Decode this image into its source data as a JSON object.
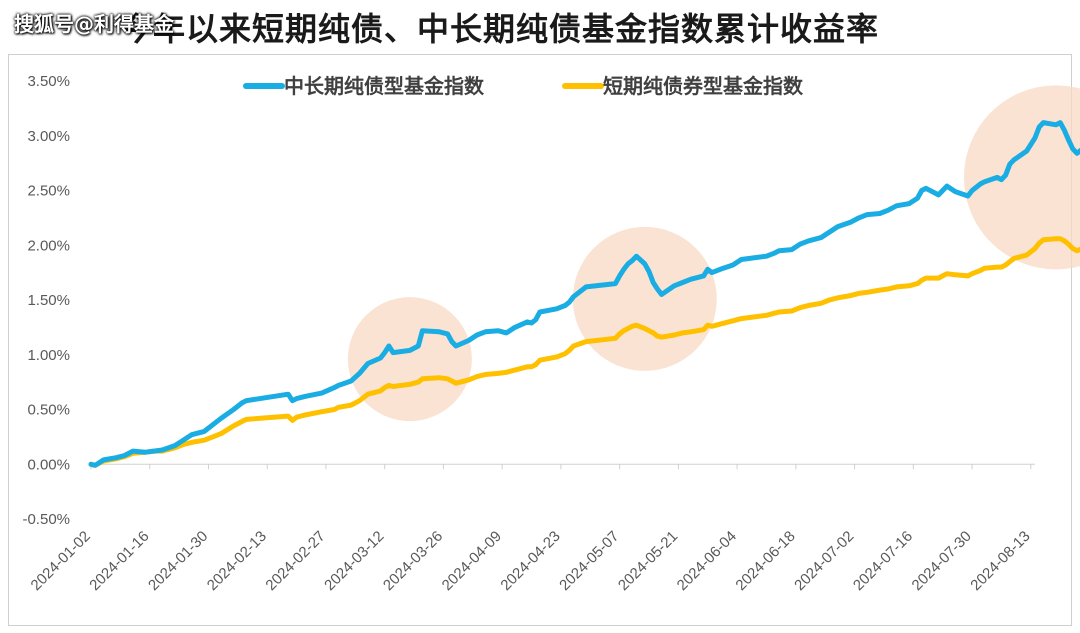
{
  "title": "今年以来短期纯债、中长期纯债基金指数累计收益率",
  "watermark": "搜狐号@利得基金",
  "chart_data": {
    "type": "line",
    "title": "今年以来短期纯债、中长期纯债基金指数累计收益率",
    "xlabel": "",
    "ylabel": "",
    "ylim": [
      -0.005,
      0.035
    ],
    "yticks": [
      "3.50%",
      "3.00%",
      "2.50%",
      "2.00%",
      "1.50%",
      "1.00%",
      "0.50%",
      "0.00%",
      "-0.50%"
    ],
    "ytick_values": [
      0.035,
      0.03,
      0.025,
      0.02,
      0.015,
      0.01,
      0.005,
      0.0,
      -0.005
    ],
    "xrange": [
      "2024-01-02",
      "2024-08-14"
    ],
    "xticks": [
      "2024-01-02",
      "2024-01-16",
      "2024-01-30",
      "2024-02-13",
      "2024-02-27",
      "2024-03-12",
      "2024-03-26",
      "2024-04-09",
      "2024-04-23",
      "2024-05-07",
      "2024-05-21",
      "2024-06-04",
      "2024-06-18",
      "2024-07-02",
      "2024-07-16",
      "2024-07-30",
      "2024-08-13"
    ],
    "legend_position": "top-center",
    "grid": false,
    "series": [
      {
        "name": "中长期纯债型基金指数",
        "color": "#1AADE4",
        "points": [
          [
            "2024-01-02",
            0.0
          ],
          [
            "2024-01-03",
            -0.0001
          ],
          [
            "2024-01-05",
            0.0004
          ],
          [
            "2024-01-08",
            0.0006
          ],
          [
            "2024-01-10",
            0.0008
          ],
          [
            "2024-01-12",
            0.0012
          ],
          [
            "2024-01-15",
            0.0011
          ],
          [
            "2024-01-17",
            0.0012
          ],
          [
            "2024-01-19",
            0.0013
          ],
          [
            "2024-01-22",
            0.0017
          ],
          [
            "2024-01-24",
            0.0022
          ],
          [
            "2024-01-26",
            0.0027
          ],
          [
            "2024-01-29",
            0.003
          ],
          [
            "2024-01-31",
            0.0036
          ],
          [
            "2024-02-02",
            0.0042
          ],
          [
            "2024-02-05",
            0.005
          ],
          [
            "2024-02-07",
            0.0056
          ],
          [
            "2024-02-08",
            0.0058
          ],
          [
            "2024-02-18",
            0.0064
          ],
          [
            "2024-02-19",
            0.0058
          ],
          [
            "2024-02-20",
            0.006
          ],
          [
            "2024-02-22",
            0.0062
          ],
          [
            "2024-02-26",
            0.0065
          ],
          [
            "2024-02-29",
            0.007
          ],
          [
            "2024-03-01",
            0.0072
          ],
          [
            "2024-03-04",
            0.0076
          ],
          [
            "2024-03-06",
            0.0083
          ],
          [
            "2024-03-08",
            0.0092
          ],
          [
            "2024-03-11",
            0.0097
          ],
          [
            "2024-03-12",
            0.0102
          ],
          [
            "2024-03-13",
            0.0108
          ],
          [
            "2024-03-14",
            0.0102
          ],
          [
            "2024-03-18",
            0.0104
          ],
          [
            "2024-03-20",
            0.0108
          ],
          [
            "2024-03-21",
            0.0122
          ],
          [
            "2024-03-25",
            0.0121
          ],
          [
            "2024-03-27",
            0.0119
          ],
          [
            "2024-03-28",
            0.0112
          ],
          [
            "2024-03-29",
            0.0108
          ],
          [
            "2024-04-01",
            0.0113
          ],
          [
            "2024-04-03",
            0.0118
          ],
          [
            "2024-04-05",
            0.0121
          ],
          [
            "2024-04-08",
            0.0122
          ],
          [
            "2024-04-10",
            0.012
          ],
          [
            "2024-04-12",
            0.0125
          ],
          [
            "2024-04-15",
            0.013
          ],
          [
            "2024-04-16",
            0.0129
          ],
          [
            "2024-04-17",
            0.0132
          ],
          [
            "2024-04-18",
            0.0139
          ],
          [
            "2024-04-22",
            0.0142
          ],
          [
            "2024-04-24",
            0.0145
          ],
          [
            "2024-04-25",
            0.0148
          ],
          [
            "2024-04-26",
            0.0153
          ],
          [
            "2024-04-29",
            0.0162
          ],
          [
            "2024-05-06",
            0.0165
          ],
          [
            "2024-05-07",
            0.0172
          ],
          [
            "2024-05-08",
            0.0178
          ],
          [
            "2024-05-09",
            0.0183
          ],
          [
            "2024-05-10",
            0.0186
          ],
          [
            "2024-05-11",
            0.019
          ],
          [
            "2024-05-13",
            0.0183
          ],
          [
            "2024-05-14",
            0.0176
          ],
          [
            "2024-05-15",
            0.0166
          ],
          [
            "2024-05-16",
            0.016
          ],
          [
            "2024-05-17",
            0.0155
          ],
          [
            "2024-05-20",
            0.0163
          ],
          [
            "2024-05-22",
            0.0166
          ],
          [
            "2024-05-24",
            0.0169
          ],
          [
            "2024-05-27",
            0.0172
          ],
          [
            "2024-05-28",
            0.0178
          ],
          [
            "2024-05-29",
            0.0175
          ],
          [
            "2024-05-31",
            0.0178
          ],
          [
            "2024-06-03",
            0.0182
          ],
          [
            "2024-06-05",
            0.0187
          ],
          [
            "2024-06-07",
            0.0188
          ],
          [
            "2024-06-11",
            0.019
          ],
          [
            "2024-06-13",
            0.0193
          ],
          [
            "2024-06-14",
            0.0195
          ],
          [
            "2024-06-17",
            0.0196
          ],
          [
            "2024-06-19",
            0.0201
          ],
          [
            "2024-06-21",
            0.0204
          ],
          [
            "2024-06-24",
            0.0207
          ],
          [
            "2024-06-26",
            0.0212
          ],
          [
            "2024-06-28",
            0.0217
          ],
          [
            "2024-07-01",
            0.0221
          ],
          [
            "2024-07-03",
            0.0225
          ],
          [
            "2024-07-05",
            0.0228
          ],
          [
            "2024-07-08",
            0.0229
          ],
          [
            "2024-07-10",
            0.0232
          ],
          [
            "2024-07-12",
            0.0236
          ],
          [
            "2024-07-15",
            0.0238
          ],
          [
            "2024-07-17",
            0.0243
          ],
          [
            "2024-07-18",
            0.025
          ],
          [
            "2024-07-19",
            0.0252
          ],
          [
            "2024-07-22",
            0.0246
          ],
          [
            "2024-07-23",
            0.025
          ],
          [
            "2024-07-24",
            0.0254
          ],
          [
            "2024-07-26",
            0.0249
          ],
          [
            "2024-07-29",
            0.0245
          ],
          [
            "2024-07-30",
            0.025
          ],
          [
            "2024-08-01",
            0.0256
          ],
          [
            "2024-08-02",
            0.0258
          ],
          [
            "2024-08-05",
            0.0262
          ],
          [
            "2024-08-06",
            0.026
          ],
          [
            "2024-08-07",
            0.0264
          ],
          [
            "2024-08-08",
            0.0274
          ],
          [
            "2024-08-09",
            0.0278
          ],
          [
            "2024-08-12",
            0.0286
          ],
          [
            "2024-08-13",
            0.0292
          ],
          [
            "2024-08-14",
            0.0298
          ],
          [
            "2024-08-15",
            0.0308
          ],
          [
            "2024-08-16",
            0.0312
          ],
          [
            "2024-08-19",
            0.031
          ],
          [
            "2024-08-20",
            0.0312
          ],
          [
            "2024-08-21",
            0.0305
          ],
          [
            "2024-08-22",
            0.0296
          ],
          [
            "2024-08-23",
            0.0288
          ],
          [
            "2024-08-24",
            0.0284
          ],
          [
            "2024-08-26",
            0.029
          ]
        ]
      },
      {
        "name": "短期纯债券型基金指数",
        "color": "#FFC000",
        "points": [
          [
            "2024-01-02",
            0.0
          ],
          [
            "2024-01-03",
            -0.0001
          ],
          [
            "2024-01-05",
            0.0003
          ],
          [
            "2024-01-08",
            0.0005
          ],
          [
            "2024-01-10",
            0.0007
          ],
          [
            "2024-01-12",
            0.001
          ],
          [
            "2024-01-15",
            0.0011
          ],
          [
            "2024-01-17",
            0.0012
          ],
          [
            "2024-01-19",
            0.0012
          ],
          [
            "2024-01-22",
            0.0015
          ],
          [
            "2024-01-24",
            0.0018
          ],
          [
            "2024-01-26",
            0.002
          ],
          [
            "2024-01-29",
            0.0022
          ],
          [
            "2024-01-31",
            0.0025
          ],
          [
            "2024-02-02",
            0.0028
          ],
          [
            "2024-02-05",
            0.0035
          ],
          [
            "2024-02-07",
            0.0039
          ],
          [
            "2024-02-08",
            0.0041
          ],
          [
            "2024-02-18",
            0.0044
          ],
          [
            "2024-02-19",
            0.004
          ],
          [
            "2024-02-20",
            0.0043
          ],
          [
            "2024-02-22",
            0.0045
          ],
          [
            "2024-02-26",
            0.0048
          ],
          [
            "2024-02-29",
            0.005
          ],
          [
            "2024-03-01",
            0.0052
          ],
          [
            "2024-03-04",
            0.0054
          ],
          [
            "2024-03-06",
            0.0058
          ],
          [
            "2024-03-08",
            0.0064
          ],
          [
            "2024-03-11",
            0.0067
          ],
          [
            "2024-03-12",
            0.007
          ],
          [
            "2024-03-13",
            0.0072
          ],
          [
            "2024-03-14",
            0.0071
          ],
          [
            "2024-03-18",
            0.0073
          ],
          [
            "2024-03-20",
            0.0075
          ],
          [
            "2024-03-21",
            0.0078
          ],
          [
            "2024-03-25",
            0.0079
          ],
          [
            "2024-03-27",
            0.0078
          ],
          [
            "2024-03-28",
            0.0076
          ],
          [
            "2024-03-29",
            0.0074
          ],
          [
            "2024-04-01",
            0.0077
          ],
          [
            "2024-04-03",
            0.008
          ],
          [
            "2024-04-05",
            0.0082
          ],
          [
            "2024-04-08",
            0.0083
          ],
          [
            "2024-04-10",
            0.0084
          ],
          [
            "2024-04-12",
            0.0086
          ],
          [
            "2024-04-15",
            0.0089
          ],
          [
            "2024-04-16",
            0.0089
          ],
          [
            "2024-04-17",
            0.0091
          ],
          [
            "2024-04-18",
            0.0095
          ],
          [
            "2024-04-22",
            0.0098
          ],
          [
            "2024-04-24",
            0.0101
          ],
          [
            "2024-04-25",
            0.0104
          ],
          [
            "2024-04-26",
            0.0108
          ],
          [
            "2024-04-29",
            0.0112
          ],
          [
            "2024-05-06",
            0.0115
          ],
          [
            "2024-05-07",
            0.0119
          ],
          [
            "2024-05-08",
            0.0122
          ],
          [
            "2024-05-09",
            0.0124
          ],
          [
            "2024-05-10",
            0.0126
          ],
          [
            "2024-05-11",
            0.0127
          ],
          [
            "2024-05-13",
            0.0124
          ],
          [
            "2024-05-14",
            0.0122
          ],
          [
            "2024-05-15",
            0.012
          ],
          [
            "2024-05-16",
            0.0117
          ],
          [
            "2024-05-17",
            0.0116
          ],
          [
            "2024-05-20",
            0.0118
          ],
          [
            "2024-05-22",
            0.012
          ],
          [
            "2024-05-24",
            0.0121
          ],
          [
            "2024-05-27",
            0.0123
          ],
          [
            "2024-05-28",
            0.0127
          ],
          [
            "2024-05-29",
            0.0126
          ],
          [
            "2024-05-31",
            0.0128
          ],
          [
            "2024-06-03",
            0.0131
          ],
          [
            "2024-06-05",
            0.0133
          ],
          [
            "2024-06-07",
            0.0134
          ],
          [
            "2024-06-11",
            0.0136
          ],
          [
            "2024-06-13",
            0.0138
          ],
          [
            "2024-06-14",
            0.0139
          ],
          [
            "2024-06-17",
            0.014
          ],
          [
            "2024-06-19",
            0.0143
          ],
          [
            "2024-06-21",
            0.0145
          ],
          [
            "2024-06-24",
            0.0147
          ],
          [
            "2024-06-26",
            0.015
          ],
          [
            "2024-06-28",
            0.0152
          ],
          [
            "2024-07-01",
            0.0154
          ],
          [
            "2024-07-03",
            0.0156
          ],
          [
            "2024-07-05",
            0.0157
          ],
          [
            "2024-07-08",
            0.0159
          ],
          [
            "2024-07-10",
            0.016
          ],
          [
            "2024-07-12",
            0.0162
          ],
          [
            "2024-07-15",
            0.0163
          ],
          [
            "2024-07-17",
            0.0165
          ],
          [
            "2024-07-18",
            0.0168
          ],
          [
            "2024-07-19",
            0.017
          ],
          [
            "2024-07-22",
            0.017
          ],
          [
            "2024-07-23",
            0.0172
          ],
          [
            "2024-07-24",
            0.0174
          ],
          [
            "2024-07-26",
            0.0173
          ],
          [
            "2024-07-29",
            0.0172
          ],
          [
            "2024-07-30",
            0.0174
          ],
          [
            "2024-08-01",
            0.0177
          ],
          [
            "2024-08-02",
            0.0179
          ],
          [
            "2024-08-05",
            0.018
          ],
          [
            "2024-08-06",
            0.018
          ],
          [
            "2024-08-07",
            0.0182
          ],
          [
            "2024-08-08",
            0.0185
          ],
          [
            "2024-08-09",
            0.0188
          ],
          [
            "2024-08-12",
            0.0191
          ],
          [
            "2024-08-13",
            0.0194
          ],
          [
            "2024-08-14",
            0.0197
          ],
          [
            "2024-08-15",
            0.0202
          ],
          [
            "2024-08-16",
            0.0205
          ],
          [
            "2024-08-19",
            0.0206
          ],
          [
            "2024-08-20",
            0.0206
          ],
          [
            "2024-08-21",
            0.0204
          ],
          [
            "2024-08-22",
            0.0201
          ],
          [
            "2024-08-23",
            0.0197
          ],
          [
            "2024-08-24",
            0.0195
          ],
          [
            "2024-08-26",
            0.0198
          ]
        ]
      }
    ],
    "highlights": [
      {
        "center": [
          "2024-03-18",
          0.0096
        ],
        "color": "#F8D9C4"
      },
      {
        "center": [
          "2024-05-13",
          0.0151
        ],
        "color": "#F8D9C4"
      },
      {
        "center": [
          "2024-08-19",
          0.0262
        ],
        "color": "#F8D9C4"
      }
    ]
  }
}
